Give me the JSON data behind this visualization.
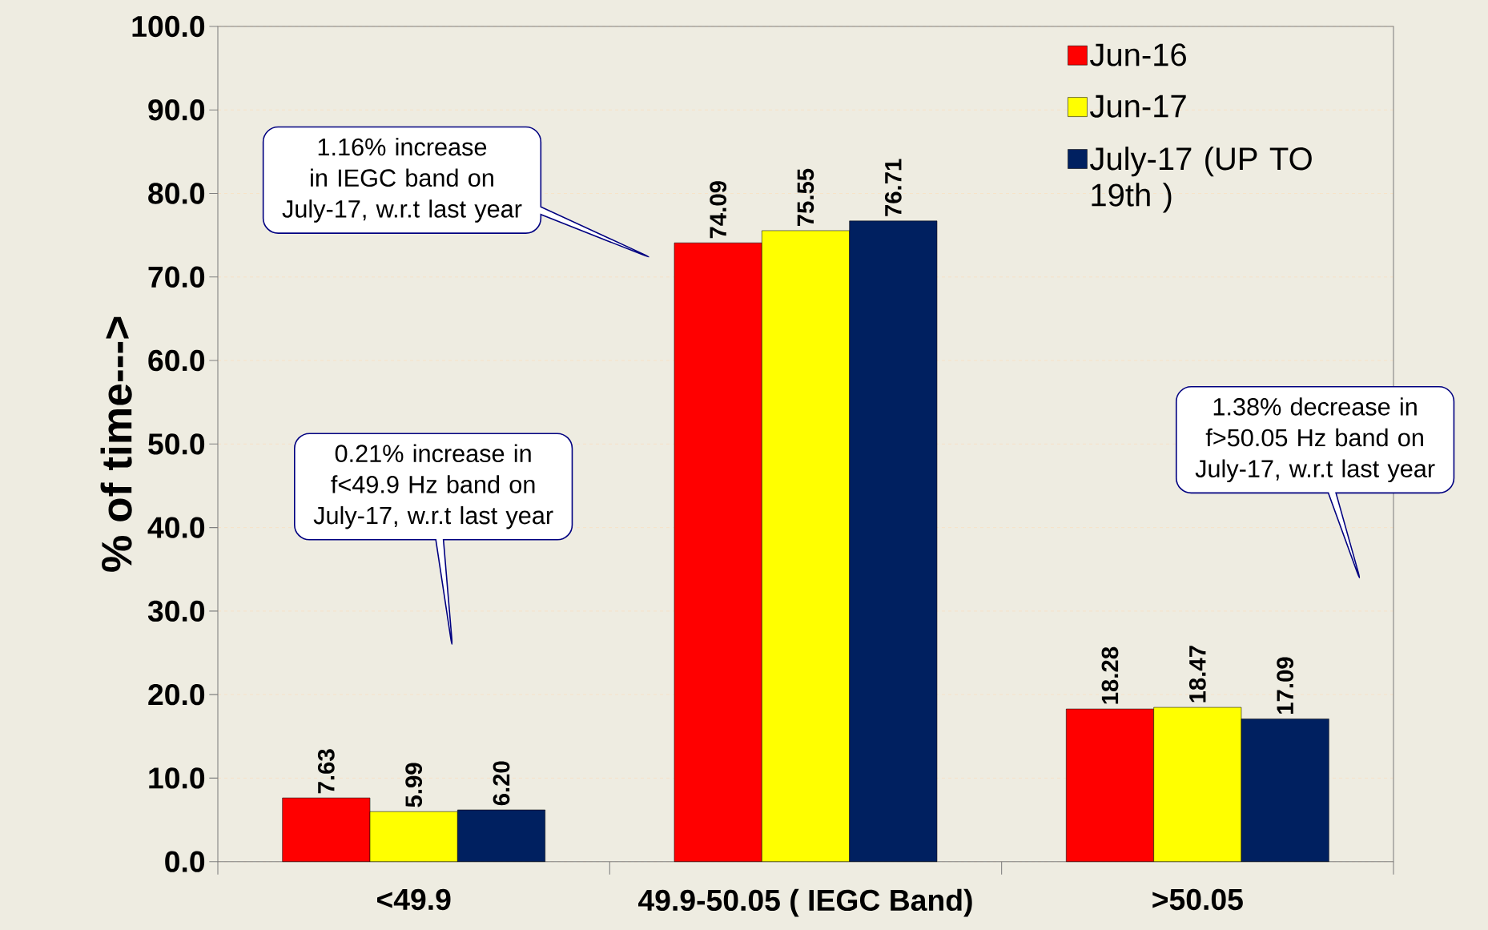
{
  "chart_data": {
    "type": "bar",
    "ylabel": "% of time--->",
    "categories": [
      "<49.9",
      "49.9-50.05 ( IEGC Band)",
      ">50.05"
    ],
    "series": [
      {
        "name": "Jun-16",
        "color": "#ff0000",
        "values": [
          7.63,
          74.09,
          18.28
        ],
        "value_labels": [
          "7.63",
          "74.09",
          "18.28"
        ]
      },
      {
        "name": "Jun-17",
        "color": "#ffff00",
        "values": [
          5.99,
          75.55,
          18.47
        ],
        "value_labels": [
          "5.99",
          "75.55",
          "18.47"
        ]
      },
      {
        "name": "July-17 (UP TO 19th )",
        "color": "#002060",
        "values": [
          6.2,
          76.71,
          17.09
        ],
        "value_labels": [
          "6.20",
          "76.71",
          "17.09"
        ]
      }
    ],
    "ylim": [
      0,
      100
    ],
    "yticks": [
      {
        "value": 0,
        "label": "0.0"
      },
      {
        "value": 10,
        "label": "10.0"
      },
      {
        "value": 20,
        "label": "20.0"
      },
      {
        "value": 30,
        "label": "30.0"
      },
      {
        "value": 40,
        "label": "40.0"
      },
      {
        "value": 50,
        "label": "50.0"
      },
      {
        "value": 60,
        "label": "60.0"
      },
      {
        "value": 70,
        "label": "70.0"
      },
      {
        "value": 80,
        "label": "80.0"
      },
      {
        "value": 90,
        "label": "90.0"
      },
      {
        "value": 100,
        "label": "100.0"
      }
    ],
    "grid": "y",
    "legend": "top right",
    "annotations": [
      "1.16% increase in IEGC band on July-17, w.r.t last year",
      "0.21% increase in f<49.9 Hz band on July-17, w.r.t last year",
      "1.38% decrease in f>50.05 Hz band on July-17, w.r.t last year"
    ]
  }
}
